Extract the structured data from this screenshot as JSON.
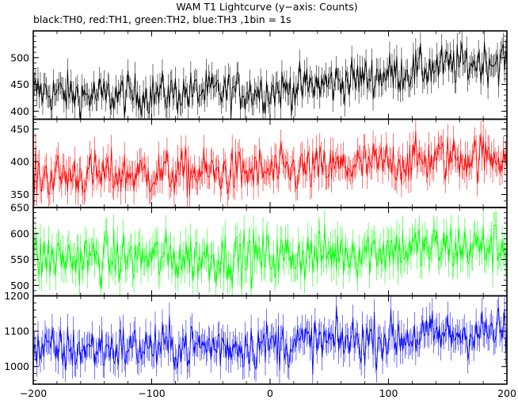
{
  "title": "WAM T1 Lightcurve (y−axis: Counts)",
  "subtitle": "black:TH0, red:TH1, green:TH2, blue:TH3 ,1bin = 1s",
  "chart_data": {
    "type": "line",
    "title": "WAM T1 Lightcurve (y−axis: Counts)",
    "subtitle": "black:TH0, red:TH1, green:TH2, blue:TH3 ,1bin = 1s",
    "xlabel": "",
    "ylabel": "",
    "xlim": [
      -200,
      200
    ],
    "x_ticks": [
      "−200",
      "−100",
      "0",
      "100",
      "200"
    ],
    "bin_seconds": 1,
    "grid": false,
    "panels": [
      {
        "name": "TH0",
        "color": "#000000",
        "ylim": [
          385,
          550
        ],
        "y_ticks": [
          "400",
          "450",
          "500"
        ],
        "x": [
          -200,
          -150,
          -100,
          -50,
          0,
          50,
          100,
          150,
          200
        ],
        "values": [
          438,
          428,
          432,
          436,
          438,
          452,
          470,
          485,
          497
        ],
        "noise_amplitude": 22
      },
      {
        "name": "TH1",
        "color": "#ff0000",
        "ylim": [
          330,
          465
        ],
        "y_ticks": [
          "350",
          "400",
          "450"
        ],
        "x": [
          -200,
          -150,
          -100,
          -50,
          0,
          50,
          100,
          150,
          200
        ],
        "values": [
          378,
          380,
          382,
          383,
          384,
          390,
          398,
          406,
          410
        ],
        "noise_amplitude": 20
      },
      {
        "name": "TH2",
        "color": "#00ff00",
        "ylim": [
          480,
          650
        ],
        "y_ticks": [
          "500",
          "550",
          "600",
          "650"
        ],
        "x": [
          -200,
          -150,
          -100,
          -50,
          0,
          50,
          100,
          150,
          200
        ],
        "values": [
          553,
          552,
          553,
          554,
          555,
          562,
          570,
          572,
          575
        ],
        "noise_amplitude": 28
      },
      {
        "name": "TH3",
        "color": "#0000ff",
        "ylim": [
          950,
          1200
        ],
        "y_ticks": [
          "1000",
          "1100",
          "1200"
        ],
        "x": [
          -200,
          -150,
          -100,
          -50,
          0,
          50,
          100,
          150,
          200
        ],
        "values": [
          1045,
          1050,
          1055,
          1058,
          1062,
          1070,
          1080,
          1090,
          1100
        ],
        "noise_amplitude": 38
      }
    ]
  }
}
